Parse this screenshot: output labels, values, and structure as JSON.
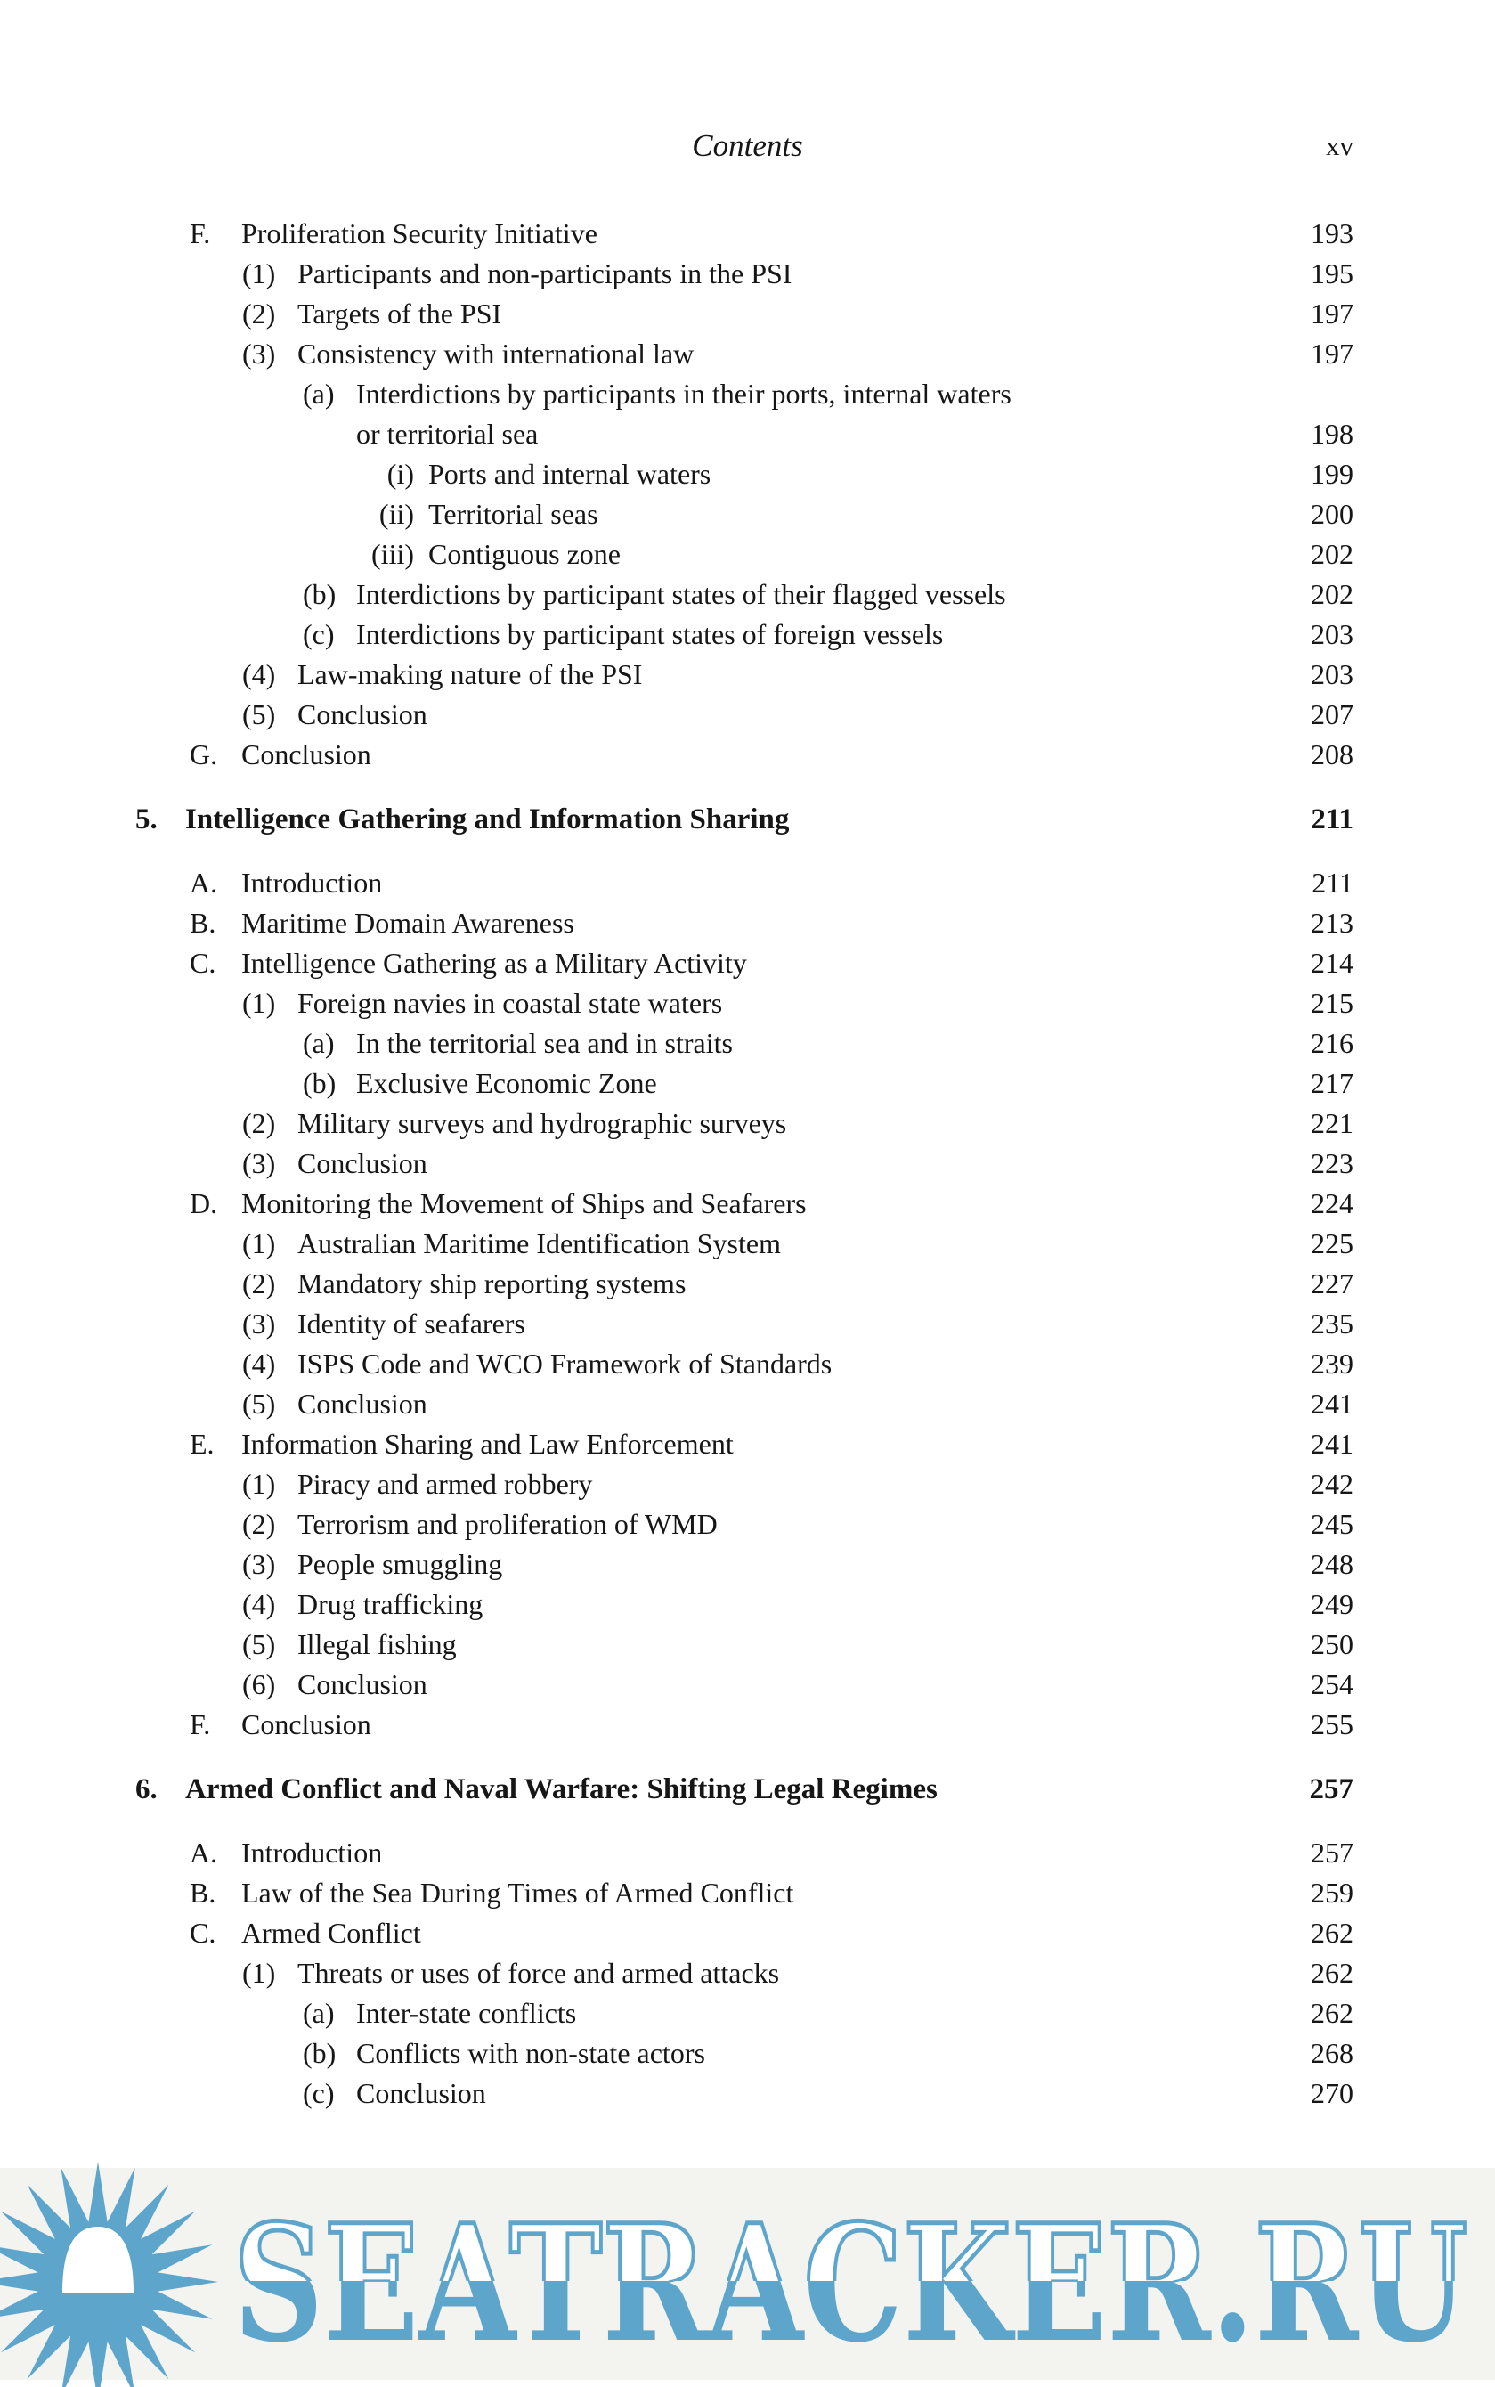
{
  "header": {
    "running_head": "Contents",
    "folio": "xv"
  },
  "toc": [
    {
      "level": "letter",
      "label": "F.",
      "text": "Proliferation Security Initiative",
      "page": "193"
    },
    {
      "level": "num",
      "label": "(1)",
      "text": "Participants and non-participants in the PSI",
      "page": "195"
    },
    {
      "level": "num",
      "label": "(2)",
      "text": "Targets of the PSI",
      "page": "197"
    },
    {
      "level": "num",
      "label": "(3)",
      "text": "Consistency with international law",
      "page": "197"
    },
    {
      "level": "alpha",
      "label": "(a)",
      "text": "Interdictions by participants in their ports, internal waters",
      "page": ""
    },
    {
      "level": "cont",
      "label": "",
      "text": "or territorial sea",
      "page": "198"
    },
    {
      "level": "roman",
      "label": "(i)",
      "text": "Ports and internal waters",
      "page": "199"
    },
    {
      "level": "roman",
      "label": "(ii)",
      "text": "Territorial seas",
      "page": "200"
    },
    {
      "level": "roman",
      "label": "(iii)",
      "text": "Contiguous zone",
      "page": "202"
    },
    {
      "level": "alpha",
      "label": "(b)",
      "text": "Interdictions by participant states of their flagged vessels",
      "page": "202"
    },
    {
      "level": "alpha",
      "label": "(c)",
      "text": "Interdictions by participant states of foreign vessels",
      "page": "203"
    },
    {
      "level": "num",
      "label": "(4)",
      "text": "Law-making nature of the PSI",
      "page": "203"
    },
    {
      "level": "num",
      "label": "(5)",
      "text": "Conclusion",
      "page": "207"
    },
    {
      "level": "letter",
      "label": "G.",
      "text": "Conclusion",
      "page": "208"
    },
    {
      "level": "chapter",
      "label": "5.",
      "text": "Intelligence Gathering and Information Sharing",
      "page": "211"
    },
    {
      "level": "letter",
      "label": "A.",
      "text": "Introduction",
      "page": "211"
    },
    {
      "level": "letter",
      "label": "B.",
      "text": "Maritime Domain Awareness",
      "page": "213"
    },
    {
      "level": "letter",
      "label": "C.",
      "text": "Intelligence Gathering as a Military Activity",
      "page": "214"
    },
    {
      "level": "num",
      "label": "(1)",
      "text": "Foreign navies in coastal state waters",
      "page": "215"
    },
    {
      "level": "alpha",
      "label": "(a)",
      "text": "In the territorial sea and in straits",
      "page": "216"
    },
    {
      "level": "alpha",
      "label": "(b)",
      "text": "Exclusive Economic Zone",
      "page": "217"
    },
    {
      "level": "num",
      "label": "(2)",
      "text": "Military surveys and hydrographic surveys",
      "page": "221"
    },
    {
      "level": "num",
      "label": "(3)",
      "text": "Conclusion",
      "page": "223"
    },
    {
      "level": "letter",
      "label": "D.",
      "text": "Monitoring the Movement of Ships and Seafarers",
      "page": "224"
    },
    {
      "level": "num",
      "label": "(1)",
      "text": "Australian Maritime Identification System",
      "page": "225"
    },
    {
      "level": "num",
      "label": "(2)",
      "text": "Mandatory ship reporting systems",
      "page": "227"
    },
    {
      "level": "num",
      "label": "(3)",
      "text": "Identity of seafarers",
      "page": "235"
    },
    {
      "level": "num",
      "label": "(4)",
      "text": "ISPS Code and WCO Framework of Standards",
      "page": "239"
    },
    {
      "level": "num",
      "label": "(5)",
      "text": "Conclusion",
      "page": "241"
    },
    {
      "level": "letter",
      "label": "E.",
      "text": "Information Sharing and Law Enforcement",
      "page": "241"
    },
    {
      "level": "num",
      "label": "(1)",
      "text": "Piracy and armed robbery",
      "page": "242"
    },
    {
      "level": "num",
      "label": "(2)",
      "text": "Terrorism and proliferation of WMD",
      "page": "245"
    },
    {
      "level": "num",
      "label": "(3)",
      "text": "People smuggling",
      "page": "248"
    },
    {
      "level": "num",
      "label": "(4)",
      "text": "Drug trafficking",
      "page": "249"
    },
    {
      "level": "num",
      "label": "(5)",
      "text": "Illegal fishing",
      "page": "250"
    },
    {
      "level": "num",
      "label": "(6)",
      "text": "Conclusion",
      "page": "254"
    },
    {
      "level": "letter",
      "label": "F.",
      "text": "Conclusion",
      "page": "255"
    },
    {
      "level": "chapter",
      "label": "6.",
      "text": "Armed Conflict and Naval Warfare: Shifting Legal Regimes",
      "page": "257"
    },
    {
      "level": "letter",
      "label": "A.",
      "text": "Introduction",
      "page": "257"
    },
    {
      "level": "letter",
      "label": "B.",
      "text": "Law of the Sea During Times of Armed Conflict",
      "page": "259"
    },
    {
      "level": "letter",
      "label": "C.",
      "text": "Armed Conflict",
      "page": "262"
    },
    {
      "level": "num",
      "label": "(1)",
      "text": "Threats or uses of force and armed attacks",
      "page": "262"
    },
    {
      "level": "alpha",
      "label": "(a)",
      "text": "Inter-state conflicts",
      "page": "262"
    },
    {
      "level": "alpha",
      "label": "(b)",
      "text": "Conflicts with non-state actors",
      "page": "268"
    },
    {
      "level": "alpha",
      "label": "(c)",
      "text": "Conclusion",
      "page": "270"
    }
  ],
  "watermark": {
    "text": "SEATRACKER.RU",
    "color": "#5da5cb"
  }
}
